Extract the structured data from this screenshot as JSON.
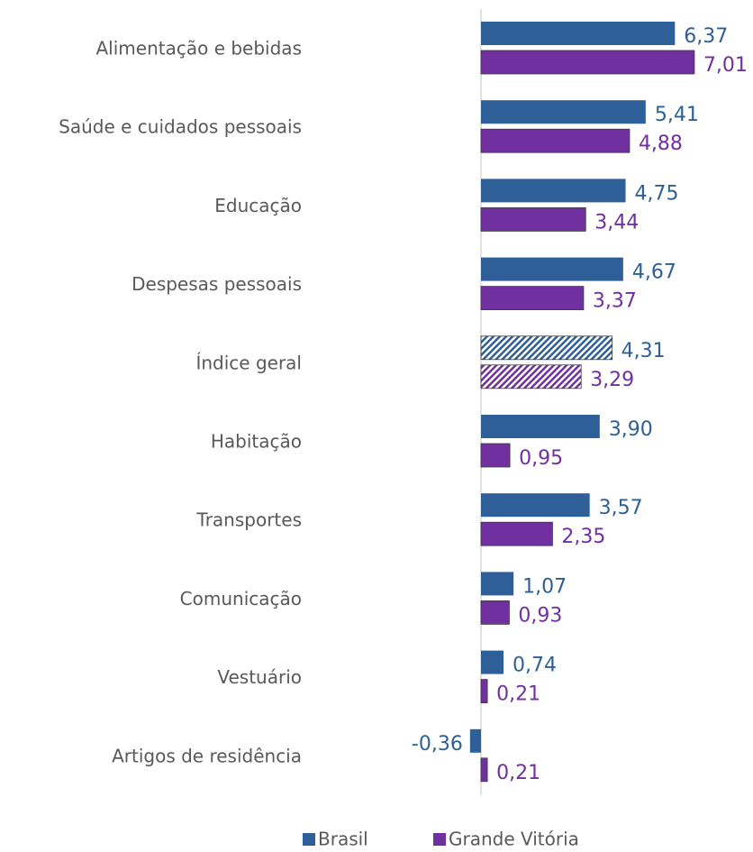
{
  "chart_data": {
    "type": "bar",
    "orientation": "horizontal",
    "categories": [
      "Alimentação e bebidas",
      "Saúde e cuidados pessoais",
      "Educação",
      "Despesas pessoais",
      "Índice geral",
      "Habitação",
      "Transportes",
      "Comunicação",
      "Vestuário",
      "Artigos de residência"
    ],
    "patterns": [
      "solid",
      "solid",
      "solid",
      "solid",
      "hatched",
      "solid",
      "solid",
      "solid",
      "solid",
      "solid"
    ],
    "series": [
      {
        "name": "Brasil",
        "color": "#2f5f98",
        "label_color": "#2e6096",
        "values": [
          6.37,
          5.41,
          4.75,
          4.67,
          4.31,
          3.9,
          3.57,
          1.07,
          0.74,
          -0.36
        ],
        "value_labels": [
          "6,37",
          "5,41",
          "4,75",
          "4,67",
          "4,31",
          "3,90",
          "3,57",
          "1,07",
          "0,74",
          "-0,36"
        ]
      },
      {
        "name": "Grande Vitória",
        "color": "#7030a0",
        "label_color": "#7030a0",
        "values": [
          7.01,
          4.88,
          3.44,
          3.37,
          3.29,
          0.95,
          2.35,
          0.93,
          0.21,
          0.21
        ],
        "value_labels": [
          "7,01",
          "4,88",
          "3,44",
          "3,37",
          "3,29",
          "0,95",
          "2,35",
          "0,93",
          "0,21",
          "0,21"
        ]
      }
    ],
    "legend": "bottom"
  }
}
